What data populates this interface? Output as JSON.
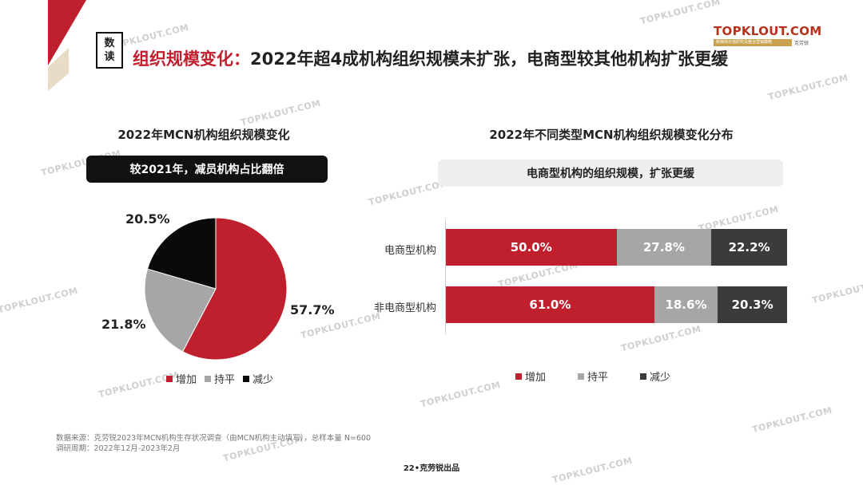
{
  "header": {
    "badge": [
      "数",
      "读"
    ],
    "title_highlight": "组织规模变化：",
    "title_rest": "2022年超4成机构组织规模未扩张，电商型较其他机构扩张更缓"
  },
  "brand": {
    "name": "TOPKLOUT.COM",
    "tagline": "新媒体价值研究及整合营销策略",
    "tag_name": "克劳锐"
  },
  "watermark_text": "TOPKLOUT.COM",
  "colors": {
    "increase": "#c01f2e",
    "flat": "#a6a6a6",
    "decrease_pie": "#0a0a0a",
    "decrease_bar": "#3b3b3b",
    "accent": "#c01f2e"
  },
  "left_chart": {
    "title": "2022年MCN机构组织规模变化",
    "pill": "较2021年，减员机构占比翻倍"
  },
  "right_chart": {
    "title": "2022年不同类型MCN机构组织规模变化分布",
    "pill": "电商型机构的组织规模，扩张更缓"
  },
  "chart_data": [
    {
      "type": "pie",
      "title": "2022年MCN机构组织规模变化",
      "slices": [
        {
          "name": "增加",
          "value": 57.7,
          "label": "57.7%"
        },
        {
          "name": "持平",
          "value": 21.8,
          "label": "21.8%"
        },
        {
          "name": "减少",
          "value": 20.5,
          "label": "20.5%"
        }
      ],
      "legend": [
        "增加",
        "持平",
        "减少"
      ],
      "legend_position": "bottom"
    },
    {
      "type": "bar",
      "orientation": "horizontal",
      "stacked": true,
      "title": "2022年不同类型MCN机构组织规模变化分布",
      "categories": [
        "电商型机构",
        "非电商型机构"
      ],
      "series": [
        {
          "name": "增加",
          "values": [
            50.0,
            61.0
          ],
          "labels": [
            "50.0%",
            "61.0%"
          ]
        },
        {
          "name": "持平",
          "values": [
            27.8,
            18.6
          ],
          "labels": [
            "27.8%",
            "18.6%"
          ]
        },
        {
          "name": "减少",
          "values": [
            22.2,
            20.3
          ],
          "labels": [
            "22.2%",
            "20.3%"
          ]
        }
      ],
      "legend": [
        "增加",
        "持平",
        "减少"
      ],
      "legend_position": "bottom",
      "xlim": [
        0,
        100
      ]
    }
  ],
  "footer": {
    "source": "数据来源：克劳锐2023年MCN机构生存状况调查（由MCN机构主动填写），总样本量 N=600",
    "period": "调研周期：2022年12月-2023年2月",
    "page": "22•克劳锐出品"
  }
}
